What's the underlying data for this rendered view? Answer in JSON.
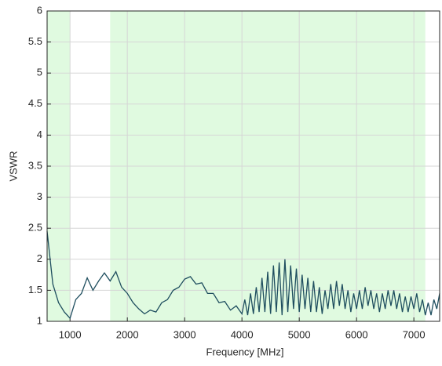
{
  "chart_data": {
    "type": "line",
    "x_label": "Frequency [MHz]",
    "y_label": "VSWR",
    "xlim": [
      600,
      7450
    ],
    "ylim": [
      1,
      6
    ],
    "xticks": [
      1000,
      2000,
      3000,
      4000,
      5000,
      6000,
      7000
    ],
    "yticks": [
      1,
      1.5,
      2,
      2.5,
      3,
      3.5,
      4,
      4.5,
      5,
      5.5,
      6
    ],
    "grid": true,
    "shaded_regions": [
      [
        600,
        1000
      ],
      [
        1700,
        7200
      ]
    ],
    "shade_color": "#e0fae0",
    "x": [
      600,
      700,
      800,
      900,
      1000,
      1100,
      1200,
      1300,
      1400,
      1500,
      1600,
      1700,
      1800,
      1900,
      2000,
      2100,
      2200,
      2300,
      2400,
      2500,
      2600,
      2700,
      2800,
      2900,
      3000,
      3100,
      3200,
      3300,
      3400,
      3500,
      3600,
      3700,
      3800,
      3900,
      4000,
      4050,
      4100,
      4150,
      4200,
      4250,
      4300,
      4350,
      4400,
      4450,
      4500,
      4550,
      4600,
      4650,
      4700,
      4750,
      4800,
      4850,
      4900,
      4950,
      5000,
      5050,
      5100,
      5150,
      5200,
      5250,
      5300,
      5350,
      5400,
      5450,
      5500,
      5550,
      5600,
      5650,
      5700,
      5750,
      5800,
      5850,
      5900,
      5950,
      6000,
      6050,
      6100,
      6150,
      6200,
      6250,
      6300,
      6350,
      6400,
      6450,
      6500,
      6550,
      6600,
      6650,
      6700,
      6750,
      6800,
      6850,
      6900,
      6950,
      7000,
      7050,
      7100,
      7150,
      7200,
      7250,
      7300,
      7350,
      7400,
      7450
    ],
    "series": [
      {
        "color": "#1f4e5f",
        "values": [
          2.45,
          1.6,
          1.3,
          1.15,
          1.05,
          1.35,
          1.45,
          1.7,
          1.5,
          1.65,
          1.78,
          1.65,
          1.8,
          1.55,
          1.45,
          1.3,
          1.2,
          1.12,
          1.18,
          1.15,
          1.3,
          1.35,
          1.5,
          1.55,
          1.68,
          1.72,
          1.6,
          1.62,
          1.45,
          1.45,
          1.3,
          1.32,
          1.18,
          1.25,
          1.12,
          1.35,
          1.1,
          1.45,
          1.12,
          1.55,
          1.15,
          1.7,
          1.15,
          1.8,
          1.12,
          1.9,
          1.15,
          1.95,
          1.1,
          2.0,
          1.15,
          1.9,
          1.2,
          1.85,
          1.15,
          1.75,
          1.2,
          1.7,
          1.15,
          1.65,
          1.15,
          1.55,
          1.12,
          1.5,
          1.2,
          1.6,
          1.2,
          1.65,
          1.25,
          1.6,
          1.2,
          1.5,
          1.15,
          1.45,
          1.2,
          1.5,
          1.2,
          1.55,
          1.25,
          1.5,
          1.2,
          1.45,
          1.15,
          1.45,
          1.2,
          1.5,
          1.25,
          1.5,
          1.2,
          1.45,
          1.15,
          1.4,
          1.15,
          1.4,
          1.2,
          1.45,
          1.15,
          1.35,
          1.1,
          1.3,
          1.1,
          1.35,
          1.2,
          1.45
        ]
      }
    ]
  }
}
